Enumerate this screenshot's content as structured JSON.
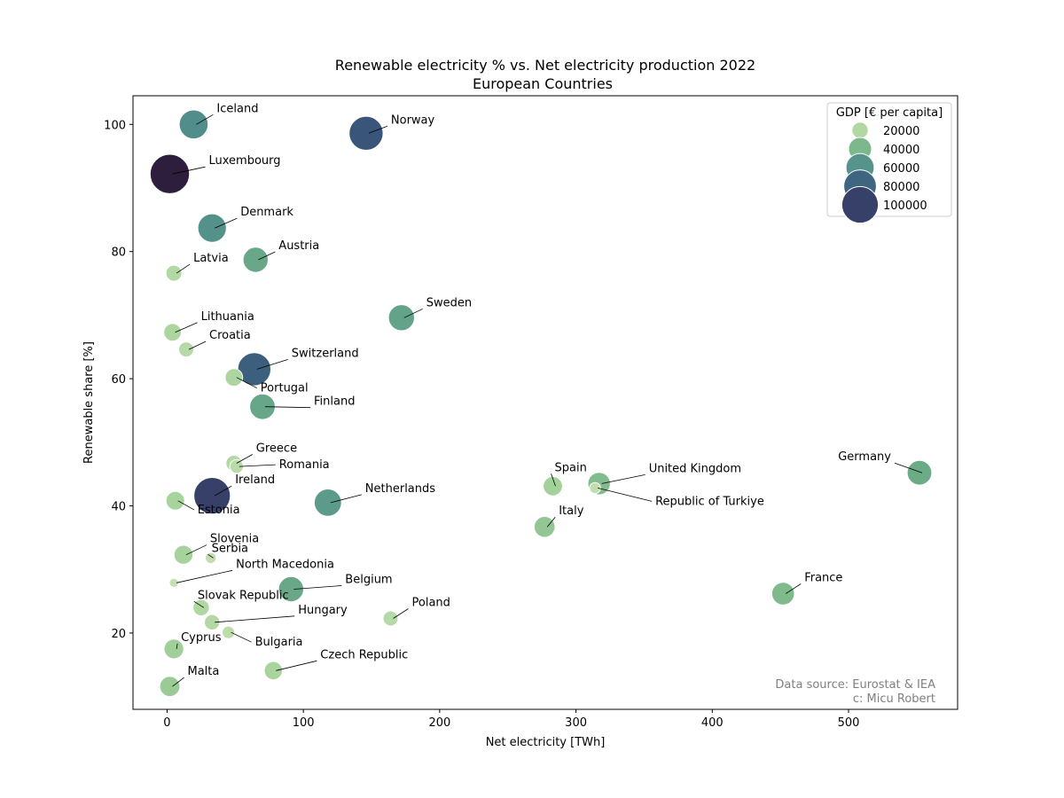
{
  "chart_data": {
    "type": "scatter",
    "title": "Renewable electricity % vs. Net electricity production 2022",
    "subtitle": "European Countries",
    "xlabel": "Net electricity [TWh]",
    "ylabel": "Renewable share [%]",
    "xlim": [
      -25,
      580
    ],
    "ylim": [
      8,
      104.5
    ],
    "xticks": [
      0,
      100,
      200,
      300,
      400,
      500
    ],
    "yticks": [
      20,
      40,
      60,
      80,
      100
    ],
    "grid": false,
    "legend": {
      "title": "GDP [€ per capita]",
      "placement": "top-right",
      "entries": [
        20000,
        40000,
        60000,
        80000,
        100000
      ]
    },
    "size_and_color_encoding": "GDP",
    "points": [
      {
        "country": "Iceland",
        "x": 19.5,
        "y": 100.0,
        "gdp": 63000
      },
      {
        "country": "Norway",
        "x": 146,
        "y": 98.6,
        "gdp": 87000
      },
      {
        "country": "Luxembourg",
        "x": 2,
        "y": 92.2,
        "gdp": 117000
      },
      {
        "country": "Denmark",
        "x": 33,
        "y": 83.7,
        "gdp": 61000
      },
      {
        "country": "Austria",
        "x": 65,
        "y": 78.7,
        "gdp": 48000
      },
      {
        "country": "Latvia",
        "x": 5,
        "y": 76.6,
        "gdp": 19000
      },
      {
        "country": "Sweden",
        "x": 172,
        "y": 69.6,
        "gdp": 51000
      },
      {
        "country": "Lithuania",
        "x": 4,
        "y": 67.3,
        "gdp": 23000
      },
      {
        "country": "Croatia",
        "x": 14,
        "y": 64.6,
        "gdp": 17000
      },
      {
        "country": "Switzerland",
        "x": 64,
        "y": 61.5,
        "gdp": 83000
      },
      {
        "country": "Portugal",
        "x": 49,
        "y": 60.2,
        "gdp": 23000
      },
      {
        "country": "Finland",
        "x": 70,
        "y": 55.6,
        "gdp": 49000
      },
      {
        "country": "Greece",
        "x": 49,
        "y": 46.7,
        "gdp": 19000
      },
      {
        "country": "Romania",
        "x": 51,
        "y": 46.2,
        "gdp": 14000
      },
      {
        "country": "Ireland",
        "x": 33,
        "y": 41.6,
        "gdp": 100000
      },
      {
        "country": "Estonia",
        "x": 6,
        "y": 40.8,
        "gdp": 26000
      },
      {
        "country": "Netherlands",
        "x": 118,
        "y": 40.5,
        "gdp": 56000
      },
      {
        "country": "Spain",
        "x": 283,
        "y": 43.1,
        "gdp": 28000
      },
      {
        "country": "United Kingdom",
        "x": 317,
        "y": 43.5,
        "gdp": 38000
      },
      {
        "country": "Republic of Turkiye",
        "x": 314,
        "y": 42.8,
        "gdp": 9000
      },
      {
        "country": "Germany",
        "x": 552,
        "y": 45.2,
        "gdp": 46000
      },
      {
        "country": "Italy",
        "x": 277,
        "y": 36.7,
        "gdp": 33000
      },
      {
        "country": "Slovenia",
        "x": 12,
        "y": 32.3,
        "gdp": 27000
      },
      {
        "country": "Serbia",
        "x": 32,
        "y": 31.8,
        "gdp": 9000
      },
      {
        "country": "North Macedonia",
        "x": 5,
        "y": 27.9,
        "gdp": 6500
      },
      {
        "country": "Belgium",
        "x": 91,
        "y": 26.9,
        "gdp": 48000
      },
      {
        "country": "France",
        "x": 452,
        "y": 26.2,
        "gdp": 39000
      },
      {
        "country": "Slovak Republic",
        "x": 25,
        "y": 24.0,
        "gdp": 20000
      },
      {
        "country": "Poland",
        "x": 164,
        "y": 22.3,
        "gdp": 17000
      },
      {
        "country": "Hungary",
        "x": 33,
        "y": 21.7,
        "gdp": 18000
      },
      {
        "country": "Bulgaria",
        "x": 45,
        "y": 20.1,
        "gdp": 12000
      },
      {
        "country": "Cyprus",
        "x": 5,
        "y": 17.5,
        "gdp": 29000
      },
      {
        "country": "Czech Republic",
        "x": 78,
        "y": 14.1,
        "gdp": 25000
      },
      {
        "country": "Malta",
        "x": 2,
        "y": 11.6,
        "gdp": 31000
      }
    ],
    "annotation": [
      "Data source: Eurostat & IEA",
      "c: Micu Robert"
    ]
  }
}
